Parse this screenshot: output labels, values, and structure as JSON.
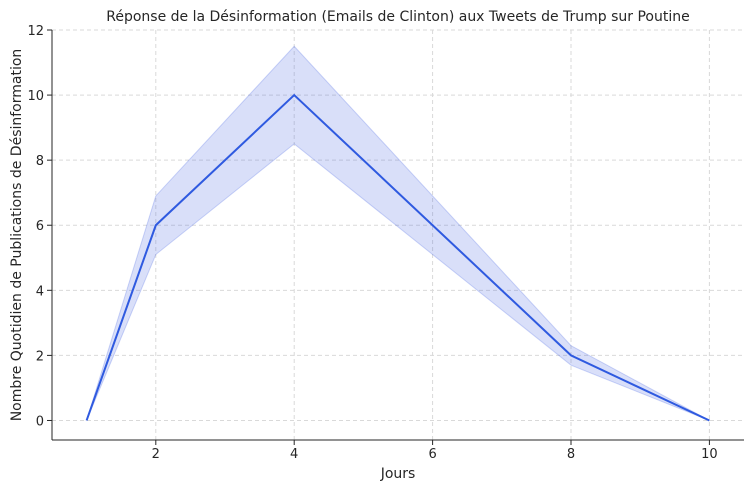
{
  "chart_data": {
    "type": "line",
    "title": "Réponse de la Désinformation (Emails de Clinton) aux Tweets de Trump sur Poutine",
    "xlabel": "Jours",
    "ylabel": "Nombre Quotidien de Publications de Désinformation",
    "xlim": [
      0.5,
      10.5
    ],
    "ylim": [
      -0.6,
      12
    ],
    "xticks": [
      2,
      4,
      6,
      8,
      10
    ],
    "yticks": [
      0,
      2,
      4,
      6,
      8,
      10,
      12
    ],
    "grid": true,
    "series": [
      {
        "x": [
          1,
          2,
          4,
          8,
          10
        ],
        "values": [
          0,
          6,
          10,
          2,
          0
        ],
        "lower": [
          0,
          5.1,
          8.5,
          1.7,
          0
        ],
        "upper": [
          0,
          6.9,
          11.5,
          2.3,
          0
        ],
        "color": "#2f5ae0"
      }
    ]
  }
}
